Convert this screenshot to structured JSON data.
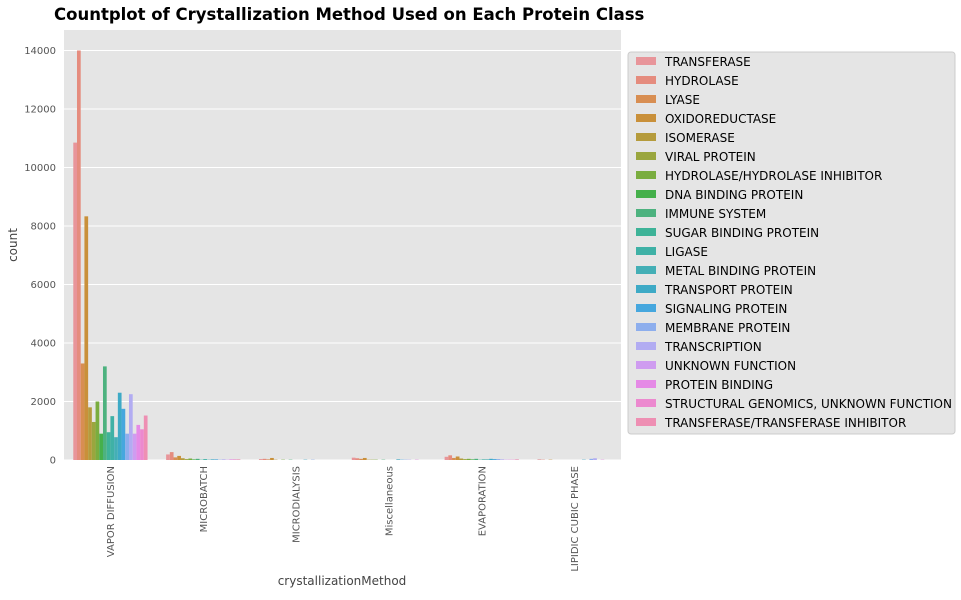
{
  "chart_data": {
    "type": "bar",
    "title": "Countplot of Crystallization Method Used on Each Protein Class",
    "xlabel": "crystallizationMethod",
    "ylabel": "count",
    "ylim": [
      0,
      14700
    ],
    "yticks": [
      0,
      2000,
      4000,
      6000,
      8000,
      10000,
      12000,
      14000
    ],
    "grid": true,
    "legend_position": "right",
    "categories": [
      "VAPOR DIFFUSION",
      "MICROBATCH",
      "MICRODIALYSIS",
      "Miscellaneous",
      "EVAPORATION",
      "LIPIDIC CUBIC PHASE"
    ],
    "series": [
      {
        "name": "TRANSFERASE",
        "color": "#e8959a",
        "values": [
          10850,
          190,
          30,
          80,
          110,
          20
        ]
      },
      {
        "name": "HYDROLASE",
        "color": "#e58c7e",
        "values": [
          14000,
          270,
          40,
          60,
          160,
          10
        ]
      },
      {
        "name": "LYASE",
        "color": "#d88e52",
        "values": [
          3300,
          90,
          20,
          40,
          70,
          0
        ]
      },
      {
        "name": "OXIDOREDUCTASE",
        "color": "#c9903a",
        "values": [
          8330,
          140,
          70,
          70,
          120,
          10
        ]
      },
      {
        "name": "ISOMERASE",
        "color": "#b59b3c",
        "values": [
          1800,
          60,
          10,
          10,
          50,
          0
        ]
      },
      {
        "name": "VIRAL PROTEIN",
        "color": "#9aa63e",
        "values": [
          1300,
          30,
          0,
          10,
          30,
          0
        ]
      },
      {
        "name": "HYDROLASE/HYDROLASE INHIBITOR",
        "color": "#7aad3f",
        "values": [
          2000,
          50,
          10,
          10,
          40,
          0
        ]
      },
      {
        "name": "DNA BINDING PROTEIN",
        "color": "#45b04b",
        "values": [
          900,
          20,
          0,
          0,
          20,
          0
        ]
      },
      {
        "name": "IMMUNE SYSTEM",
        "color": "#4db27f",
        "values": [
          3200,
          40,
          10,
          10,
          40,
          0
        ]
      },
      {
        "name": "SUGAR BINDING PROTEIN",
        "color": "#3eb398",
        "values": [
          950,
          10,
          0,
          0,
          10,
          0
        ]
      },
      {
        "name": "LIGASE",
        "color": "#3fb1a6",
        "values": [
          1500,
          30,
          0,
          0,
          20,
          0
        ]
      },
      {
        "name": "METAL BINDING PROTEIN",
        "color": "#44afb6",
        "values": [
          780,
          10,
          0,
          0,
          20,
          0
        ]
      },
      {
        "name": "TRANSPORT PROTEIN",
        "color": "#3eaac6",
        "values": [
          2300,
          20,
          10,
          20,
          40,
          10
        ]
      },
      {
        "name": "SIGNALING PROTEIN",
        "color": "#46a7de",
        "values": [
          1750,
          20,
          0,
          10,
          30,
          0
        ]
      },
      {
        "name": "MEMBRANE PROTEIN",
        "color": "#8daeed",
        "values": [
          900,
          10,
          10,
          10,
          30,
          40
        ]
      },
      {
        "name": "TRANSCRIPTION",
        "color": "#b2acf2",
        "values": [
          2250,
          20,
          0,
          10,
          20,
          60
        ]
      },
      {
        "name": "UNKNOWN FUNCTION",
        "color": "#cf9cf0",
        "values": [
          900,
          10,
          0,
          0,
          10,
          0
        ]
      },
      {
        "name": "PROTEIN BINDING",
        "color": "#e58ae6",
        "values": [
          1200,
          20,
          0,
          10,
          10,
          10
        ]
      },
      {
        "name": "STRUCTURAL GENOMICS, UNKNOWN FUNCTION",
        "color": "#ec89cf",
        "values": [
          1050,
          20,
          0,
          0,
          10,
          0
        ]
      },
      {
        "name": "TRANSFERASE/TRANSFERASE INHIBITOR",
        "color": "#ee8fb3",
        "values": [
          1520,
          20,
          0,
          0,
          20,
          0
        ]
      }
    ]
  }
}
